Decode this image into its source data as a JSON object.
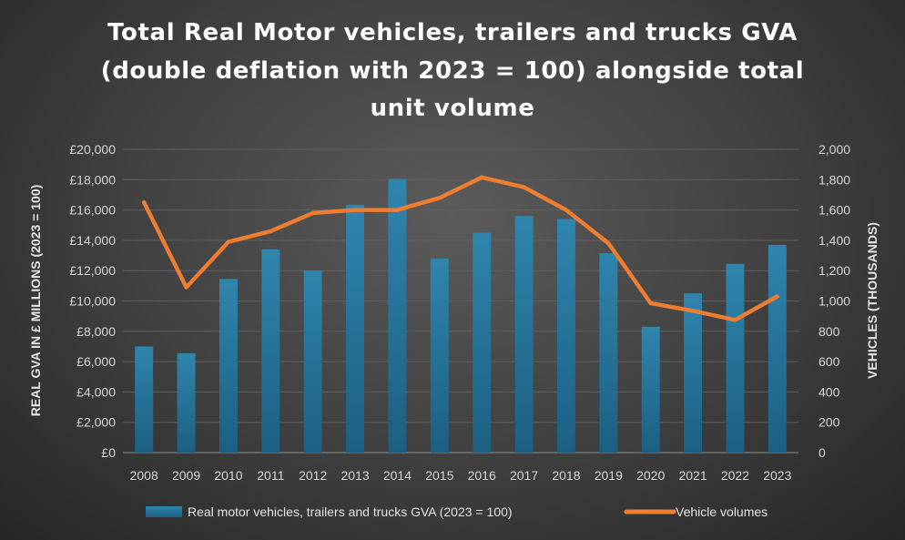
{
  "chart_data": {
    "type": "bar",
    "title_lines": [
      "Total Real Motor vehicles, trailers and trucks GVA",
      "(double deflation with 2023 = 100) alongside total",
      "unit volume"
    ],
    "categories": [
      "2008",
      "2009",
      "2010",
      "2011",
      "2012",
      "2013",
      "2014",
      "2015",
      "2016",
      "2017",
      "2018",
      "2019",
      "2020",
      "2021",
      "2022",
      "2023"
    ],
    "series": [
      {
        "name": "Real motor vehicles, trailers and trucks GVA (2023 = 100)",
        "type": "bar",
        "axis": "left",
        "color": "#2e7fa6",
        "values": [
          7000,
          6550,
          11450,
          13400,
          12000,
          16350,
          18050,
          12800,
          14500,
          15600,
          15400,
          13150,
          8300,
          10500,
          12450,
          13700
        ]
      },
      {
        "name": "Vehicle volumes",
        "type": "line",
        "axis": "right",
        "color": "#ed7d31",
        "values": [
          1650,
          1090,
          1390,
          1460,
          1580,
          1600,
          1600,
          1680,
          1815,
          1750,
          1600,
          1380,
          985,
          935,
          875,
          1030
        ]
      }
    ],
    "ylabel": "REAL GVA IN £ MILLIONS (2023 = 100)",
    "ylabel_right": "VEHICLES (THOUSANDS)",
    "ylim": [
      0,
      20000
    ],
    "ylim_right": [
      0,
      2000
    ],
    "yticks": [
      "£0",
      "£2,000",
      "£4,000",
      "£6,000",
      "£8,000",
      "£10,000",
      "£12,000",
      "£14,000",
      "£16,000",
      "£18,000",
      "£20,000"
    ],
    "yticks_right": [
      "0",
      "200",
      "400",
      "600",
      "800",
      "1,000",
      "1,200",
      "1,400",
      "1,600",
      "1,800",
      "2,000"
    ],
    "grid": true,
    "legend_position": "bottom"
  }
}
